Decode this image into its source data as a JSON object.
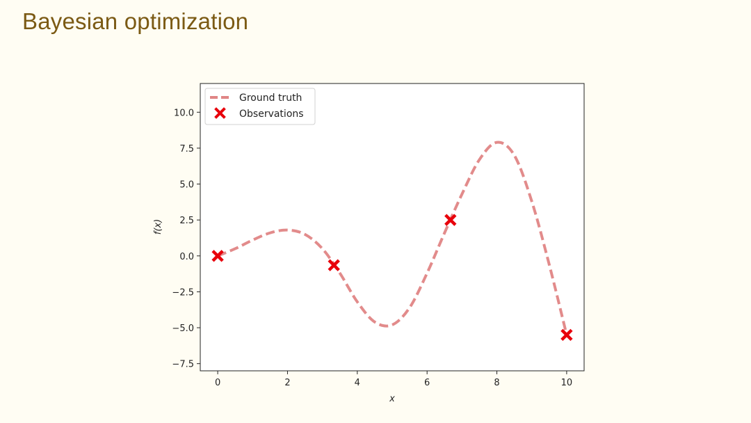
{
  "slide": {
    "title": "Bayesian optimization"
  },
  "chart_data": {
    "type": "line",
    "xlabel": "x",
    "ylabel": "f(x)",
    "xlim": [
      -0.5,
      10.5
    ],
    "ylim": [
      -8.0,
      12.0
    ],
    "xticks": [
      0,
      2,
      4,
      6,
      8,
      10
    ],
    "xtick_labels": [
      "0",
      "2",
      "4",
      "6",
      "8",
      "10"
    ],
    "yticks": [
      -7.5,
      -5.0,
      -2.5,
      0.0,
      2.5,
      5.0,
      7.5,
      10.0
    ],
    "ytick_labels": [
      "−7.5",
      "−5.0",
      "−2.5",
      "0.0",
      "2.5",
      "5.0",
      "7.5",
      "10.0"
    ],
    "grid": false,
    "legend_position": "top-left",
    "series": [
      {
        "name": "Ground truth",
        "style": "dashed-line",
        "color": "#e08585",
        "x": [
          0,
          0.5,
          1,
          1.5,
          2,
          2.5,
          3,
          3.5,
          4,
          4.5,
          5,
          5.5,
          6,
          6.5,
          7,
          7.5,
          8,
          8.5,
          9,
          9.5,
          10
        ],
        "y": [
          0,
          0.5,
          1.1,
          1.6,
          1.8,
          1.5,
          0.5,
          -1.2,
          -3.2,
          -4.6,
          -4.8,
          -3.6,
          -1.2,
          1.6,
          4.3,
          6.7,
          7.9,
          7.0,
          3.8,
          -0.6,
          -5.5
        ]
      },
      {
        "name": "Observations",
        "style": "x-markers",
        "color": "#e8000b",
        "x": [
          0,
          3.33,
          6.67,
          10
        ],
        "y": [
          0.0,
          -0.65,
          2.5,
          -5.5
        ]
      }
    ]
  }
}
